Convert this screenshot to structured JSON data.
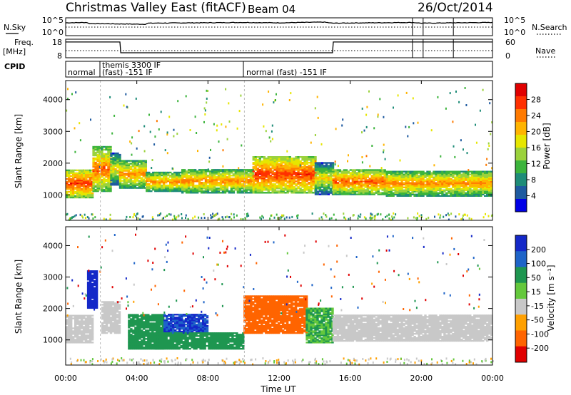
{
  "header": {
    "station": "Christmas Valley East (fitACF)",
    "beam": "Beam 04",
    "date": "26/Oct/2014"
  },
  "noise_panel": {
    "left_label": "N.Sky",
    "left_ticks": [
      "10^5",
      "10^0"
    ],
    "right_ticks": [
      "10^5",
      "10^0"
    ],
    "right_label": "N.Search",
    "right_label_style": "dotted"
  },
  "freq_panel": {
    "left_label_1": "Freq.",
    "left_label_2": "[MHz]",
    "left_ticks": [
      "18",
      "8"
    ],
    "right_ticks": [
      "60",
      "0"
    ],
    "right_label": "Nave",
    "right_label_style": "dotted"
  },
  "cpid_panel": {
    "label": "CPID",
    "segments": [
      "normal",
      "themis 3300 IF",
      "(fast) -151 IF",
      "normal (fast) -151 IF"
    ]
  },
  "time_axis": {
    "ticks": [
      "00:00",
      "04:00",
      "08:00",
      "12:00",
      "16:00",
      "20:00",
      "00:00"
    ],
    "label": "Time UT"
  },
  "power_panel": {
    "ylabel": "Slant Range [km]",
    "yticks": [
      "1000",
      "2000",
      "3000",
      "4000"
    ],
    "colorbar_label": "Power [dB]",
    "colorbar_ticks": [
      "28",
      "24",
      "20",
      "16",
      "12",
      "8",
      "4"
    ],
    "colorbar_colors": [
      "#e00000",
      "#ff3000",
      "#ff7a00",
      "#ffb400",
      "#e6e600",
      "#9bd23c",
      "#3cb43c",
      "#1e8c78",
      "#1e5aa0",
      "#0000e6"
    ]
  },
  "velocity_panel": {
    "ylabel": "Slant Range [km]",
    "yticks": [
      "1000",
      "2000",
      "3000",
      "4000"
    ],
    "colorbar_label": "Velocity [m s⁻¹]",
    "colorbar_ticks": [
      "200",
      "100",
      "50",
      "15",
      "-15",
      "-50",
      "-100",
      "-200"
    ],
    "colorbar_colors": [
      "#1428c8",
      "#1e64c8",
      "#1e9650",
      "#64c83c",
      "#c8c8c8",
      "#ffa000",
      "#ff6400",
      "#e00000"
    ]
  },
  "chart_data": [
    {
      "type": "line",
      "title": "N.Sky / N.Search",
      "x": [
        0,
        1.2,
        1.3,
        4.5,
        4.6,
        10,
        12,
        14.5,
        15,
        17,
        19.5,
        20,
        21.8,
        24
      ],
      "series": [
        {
          "values": [
            3.6,
            3.7,
            3.4,
            3.2,
            3.5,
            3.7,
            3.6,
            3.8,
            3.5,
            3.6,
            3.7,
            3.5,
            3.6,
            3.7
          ]
        }
      ],
      "yscale": "log"
    },
    {
      "type": "line",
      "title": "Freq. [MHz]",
      "x": [
        0,
        3.05,
        3.1,
        15,
        15.05,
        24
      ],
      "series": [
        {
          "values": [
            16.5,
            16.5,
            10.7,
            10.7,
            16.5,
            16.5
          ]
        }
      ],
      "ylim": [
        8,
        18
      ]
    },
    {
      "type": "heatmap",
      "title": "Power [dB]",
      "xlabel": "Time UT",
      "ylabel": "Slant Range [km]",
      "xlim": [
        0,
        24
      ],
      "ylim": [
        200,
        4600
      ],
      "clim": [
        0,
        30
      ],
      "bands": [
        {
          "t": [
            0,
            1.5
          ],
          "r": [
            900,
            1800
          ],
          "p": 26
        },
        {
          "t": [
            1.5,
            2.5
          ],
          "r": [
            1100,
            2500
          ],
          "p": 24
        },
        {
          "t": [
            2.5,
            3.0
          ],
          "r": [
            1300,
            2300
          ],
          "p": 18
        },
        {
          "t": [
            3.0,
            4.5
          ],
          "r": [
            1200,
            2100
          ],
          "p": 22
        },
        {
          "t": [
            4.5,
            6.5
          ],
          "r": [
            1100,
            1700
          ],
          "p": 22
        },
        {
          "t": [
            6.5,
            10.5
          ],
          "r": [
            1050,
            1800
          ],
          "p": 22
        },
        {
          "t": [
            10.5,
            14.0
          ],
          "r": [
            1050,
            2200
          ],
          "p": 26
        },
        {
          "t": [
            14.0,
            15.0
          ],
          "r": [
            1000,
            2000
          ],
          "p": 18
        },
        {
          "t": [
            15.0,
            18.0
          ],
          "r": [
            1000,
            1800
          ],
          "p": 24
        },
        {
          "t": [
            18.0,
            24.0
          ],
          "r": [
            950,
            1750
          ],
          "p": 22
        }
      ]
    },
    {
      "type": "heatmap",
      "title": "Velocity [m s⁻¹]",
      "xlabel": "Time UT",
      "ylabel": "Slant Range [km]",
      "xlim": [
        0,
        24
      ],
      "ylim": [
        200,
        4600
      ],
      "clim": [
        -200,
        200
      ],
      "bands": [
        {
          "t": [
            0,
            1.5
          ],
          "r": [
            900,
            1800
          ],
          "v": 0
        },
        {
          "t": [
            1.2,
            1.8
          ],
          "r": [
            2000,
            3200
          ],
          "v": 200
        },
        {
          "t": [
            2.0,
            3.0
          ],
          "r": [
            1200,
            2200
          ],
          "v": 0
        },
        {
          "t": [
            3.5,
            5.5
          ],
          "r": [
            700,
            1800
          ],
          "v": 60
        },
        {
          "t": [
            5.5,
            8.0
          ],
          "r": [
            1200,
            1800
          ],
          "v": 150
        },
        {
          "t": [
            5.0,
            10.0
          ],
          "r": [
            700,
            1200
          ],
          "v": 40
        },
        {
          "t": [
            10.0,
            13.5
          ],
          "r": [
            1200,
            2400
          ],
          "v": -60
        },
        {
          "t": [
            13.5,
            15.0
          ],
          "r": [
            900,
            2000
          ],
          "v": 30
        },
        {
          "t": [
            15.0,
            24.0
          ],
          "r": [
            950,
            1800
          ],
          "v": 0
        }
      ]
    }
  ]
}
